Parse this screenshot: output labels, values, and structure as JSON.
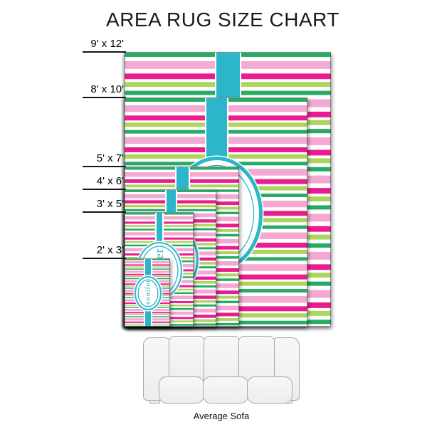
{
  "title": "AREA RUG SIZE CHART",
  "personalization_name": "Jennifer",
  "sofa": {
    "label": "Average Sofa"
  },
  "colors": {
    "teal": "#2bb6c9",
    "emerald": "#27aa63",
    "lime": "#aed45f",
    "light_pink": "#f3a9d1",
    "magenta": "#ea1c8f",
    "stripe_white": "#ffffff",
    "label_black": "#161616"
  },
  "rugs": [
    {
      "id": "9x12",
      "label": "9' x 12'",
      "width_ft": 9,
      "length_ft": 12
    },
    {
      "id": "8x10",
      "label": "8' x 10'",
      "width_ft": 8,
      "length_ft": 10
    },
    {
      "id": "5x7",
      "label": "5' x 7'",
      "width_ft": 5,
      "length_ft": 7
    },
    {
      "id": "4x6",
      "label": "4' x 6'",
      "width_ft": 4,
      "length_ft": 6
    },
    {
      "id": "3x5",
      "label": "3' x 5'",
      "width_ft": 3,
      "length_ft": 5
    },
    {
      "id": "2x3",
      "label": "2' x 3'",
      "width_ft": 2,
      "length_ft": 3
    }
  ]
}
